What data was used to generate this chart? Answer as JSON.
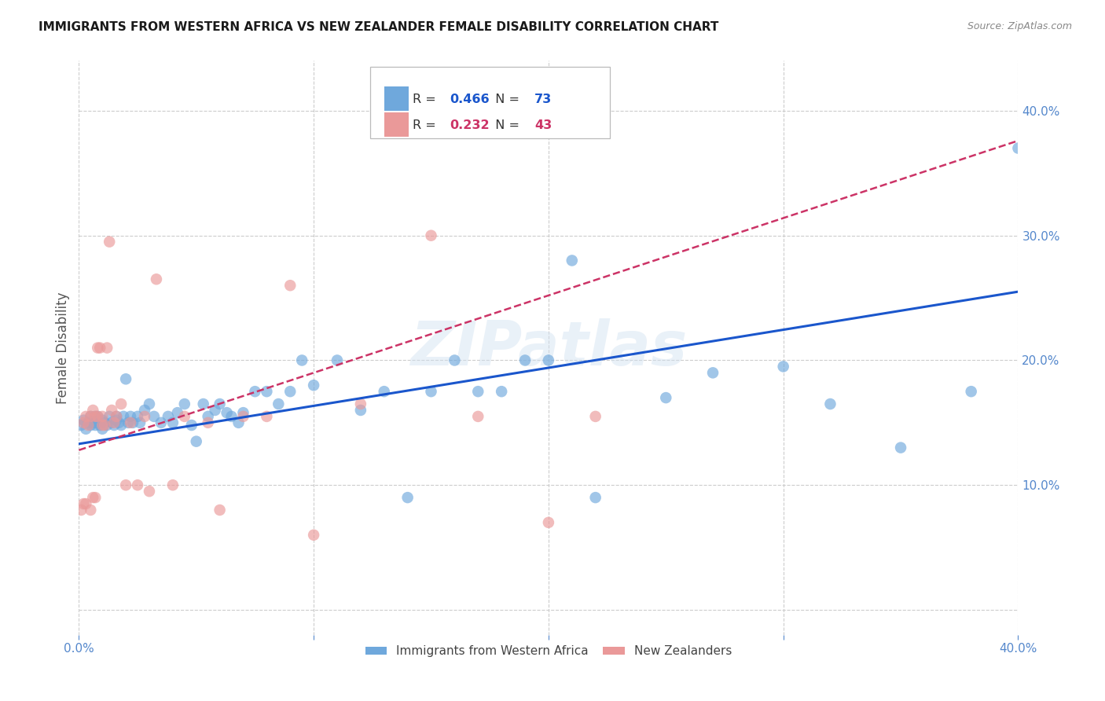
{
  "title": "IMMIGRANTS FROM WESTERN AFRICA VS NEW ZEALANDER FEMALE DISABILITY CORRELATION CHART",
  "source": "Source: ZipAtlas.com",
  "ylabel": "Female Disability",
  "xlim": [
    0.0,
    0.4
  ],
  "ylim": [
    -0.02,
    0.44
  ],
  "blue_R": 0.466,
  "blue_N": 73,
  "pink_R": 0.232,
  "pink_N": 43,
  "blue_color": "#6fa8dc",
  "pink_color": "#ea9999",
  "blue_line_color": "#1a56cc",
  "pink_line_color": "#cc3366",
  "tick_color": "#5588cc",
  "watermark": "ZIPatlas",
  "blue_points_x": [
    0.001,
    0.002,
    0.003,
    0.004,
    0.005,
    0.005,
    0.006,
    0.007,
    0.007,
    0.008,
    0.008,
    0.009,
    0.01,
    0.01,
    0.011,
    0.012,
    0.013,
    0.014,
    0.015,
    0.016,
    0.016,
    0.017,
    0.018,
    0.019,
    0.02,
    0.021,
    0.022,
    0.023,
    0.025,
    0.026,
    0.028,
    0.03,
    0.032,
    0.035,
    0.038,
    0.04,
    0.042,
    0.045,
    0.048,
    0.05,
    0.053,
    0.055,
    0.058,
    0.06,
    0.063,
    0.065,
    0.068,
    0.07,
    0.075,
    0.08,
    0.085,
    0.09,
    0.095,
    0.1,
    0.11,
    0.12,
    0.13,
    0.14,
    0.15,
    0.16,
    0.17,
    0.18,
    0.19,
    0.2,
    0.21,
    0.22,
    0.25,
    0.27,
    0.3,
    0.32,
    0.35,
    0.38,
    0.4
  ],
  "blue_points_y": [
    0.148,
    0.152,
    0.145,
    0.15,
    0.148,
    0.155,
    0.15,
    0.148,
    0.155,
    0.15,
    0.155,
    0.148,
    0.152,
    0.145,
    0.15,
    0.148,
    0.155,
    0.15,
    0.148,
    0.152,
    0.155,
    0.15,
    0.148,
    0.155,
    0.185,
    0.15,
    0.155,
    0.15,
    0.155,
    0.15,
    0.16,
    0.165,
    0.155,
    0.15,
    0.155,
    0.15,
    0.158,
    0.165,
    0.148,
    0.135,
    0.165,
    0.155,
    0.16,
    0.165,
    0.158,
    0.155,
    0.15,
    0.158,
    0.175,
    0.175,
    0.165,
    0.175,
    0.2,
    0.18,
    0.2,
    0.16,
    0.175,
    0.09,
    0.175,
    0.2,
    0.175,
    0.175,
    0.2,
    0.2,
    0.28,
    0.09,
    0.17,
    0.19,
    0.195,
    0.165,
    0.13,
    0.175,
    0.37
  ],
  "pink_points_x": [
    0.001,
    0.002,
    0.002,
    0.003,
    0.003,
    0.004,
    0.005,
    0.005,
    0.006,
    0.006,
    0.007,
    0.007,
    0.008,
    0.008,
    0.009,
    0.01,
    0.01,
    0.011,
    0.012,
    0.013,
    0.014,
    0.015,
    0.016,
    0.018,
    0.02,
    0.022,
    0.025,
    0.028,
    0.03,
    0.033,
    0.04,
    0.045,
    0.055,
    0.06,
    0.07,
    0.08,
    0.09,
    0.1,
    0.12,
    0.15,
    0.17,
    0.2,
    0.22
  ],
  "pink_points_y": [
    0.08,
    0.085,
    0.15,
    0.085,
    0.155,
    0.148,
    0.155,
    0.08,
    0.16,
    0.09,
    0.155,
    0.09,
    0.155,
    0.21,
    0.21,
    0.148,
    0.155,
    0.148,
    0.21,
    0.295,
    0.16,
    0.15,
    0.155,
    0.165,
    0.1,
    0.15,
    0.1,
    0.155,
    0.095,
    0.265,
    0.1,
    0.155,
    0.15,
    0.08,
    0.155,
    0.155,
    0.26,
    0.06,
    0.165,
    0.3,
    0.155,
    0.07,
    0.155
  ]
}
